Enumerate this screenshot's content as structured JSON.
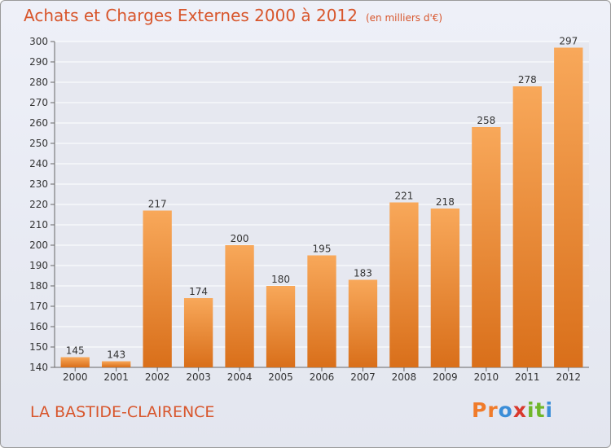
{
  "header": {
    "title": "Achats et Charges Externes 2000 à 2012",
    "subtitle": "(en milliers d'€)"
  },
  "footer": {
    "commune": "LA BASTIDE-CLAIRENCE",
    "logo_text": "Proxiti",
    "logo_colors": [
      "#f07b2a",
      "#f07b2a",
      "#3b8ed8",
      "#d9392d",
      "#70b72a",
      "#70b72a",
      "#3b8ed8"
    ]
  },
  "colors": {
    "title": "#d8562c",
    "bar_top": "#f8a85a",
    "bar_bottom": "#d96f1a",
    "grid": "#ffffff",
    "axis_text": "#333333"
  },
  "chart_data": {
    "type": "bar",
    "title": "Achats et Charges Externes 2000 à 2012",
    "subtitle": "(en milliers d'€)",
    "categories": [
      "2000",
      "2001",
      "2002",
      "2003",
      "2004",
      "2005",
      "2006",
      "2007",
      "2008",
      "2009",
      "2010",
      "2011",
      "2012"
    ],
    "values": [
      145,
      143,
      217,
      174,
      200,
      180,
      195,
      183,
      221,
      218,
      258,
      278,
      297
    ],
    "ylim": [
      140,
      300
    ],
    "ytick_step": 10,
    "xlabel": "",
    "ylabel": "",
    "grid": true,
    "data_labels": true
  }
}
